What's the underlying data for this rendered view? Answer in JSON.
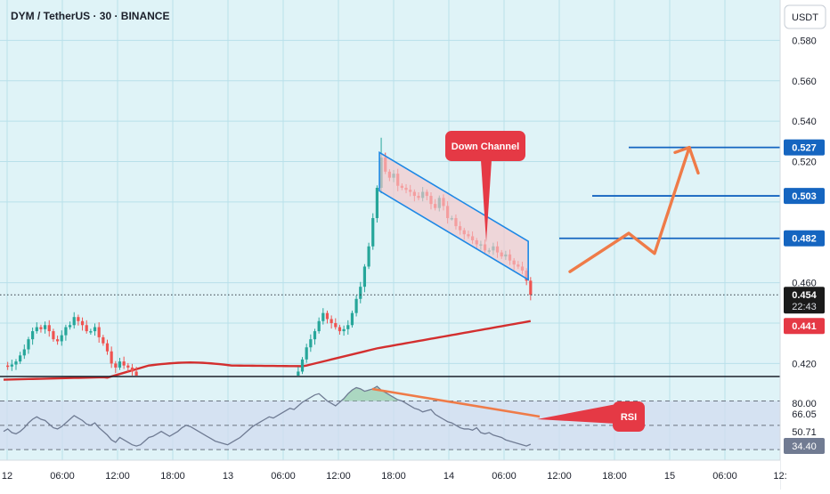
{
  "header": {
    "title": "DYM / TetherUS · 30 · BINANCE",
    "currency": "USDT"
  },
  "colors": {
    "background": "#dff3f7",
    "grid": "#b9e0ea",
    "candle_up": "#26a69a",
    "candle_down": "#ef5350",
    "ma": "#d32f2f",
    "channel_fill": "#f6c6c9",
    "channel_border": "#1e88e5",
    "level": "#1565c0",
    "projection": "#ef7b48",
    "callout": "#e53945",
    "rsi_line": "#6f7b93",
    "rsi_band": "#d2dcf0"
  },
  "chart_data": [
    {
      "type": "candlestick",
      "series_name": "DYM / TetherUS",
      "ylim": [
        0.414,
        0.6
      ],
      "y_ticks": [
        "0.580",
        "0.560",
        "0.540",
        "0.520",
        "0.460",
        "0.420"
      ],
      "x_ticks": [
        "12",
        "06:00",
        "12:00",
        "18:00",
        "13",
        "06:00",
        "12:00",
        "18:00",
        "14",
        "06:00",
        "12:00",
        "18:00",
        "15",
        "06:00",
        "12:"
      ],
      "current_price": "0.454",
      "countdown": "22:43",
      "ma_label": "0.441",
      "levels": [
        {
          "value": 0.527,
          "label": "0.527"
        },
        {
          "value": 0.503,
          "label": "0.503"
        },
        {
          "value": 0.482,
          "label": "0.482"
        }
      ],
      "annotations": [
        {
          "text": "Down Channel"
        }
      ]
    },
    {
      "type": "line",
      "series_name": "RSI",
      "ylim": [
        25,
        85
      ],
      "y_ticks": [
        "80.00",
        "66.05",
        "50.71",
        "34.40"
      ],
      "band": [
        30,
        70
      ],
      "rsi_label": "34.40",
      "annotations": [
        {
          "text": "RSI"
        }
      ]
    }
  ]
}
